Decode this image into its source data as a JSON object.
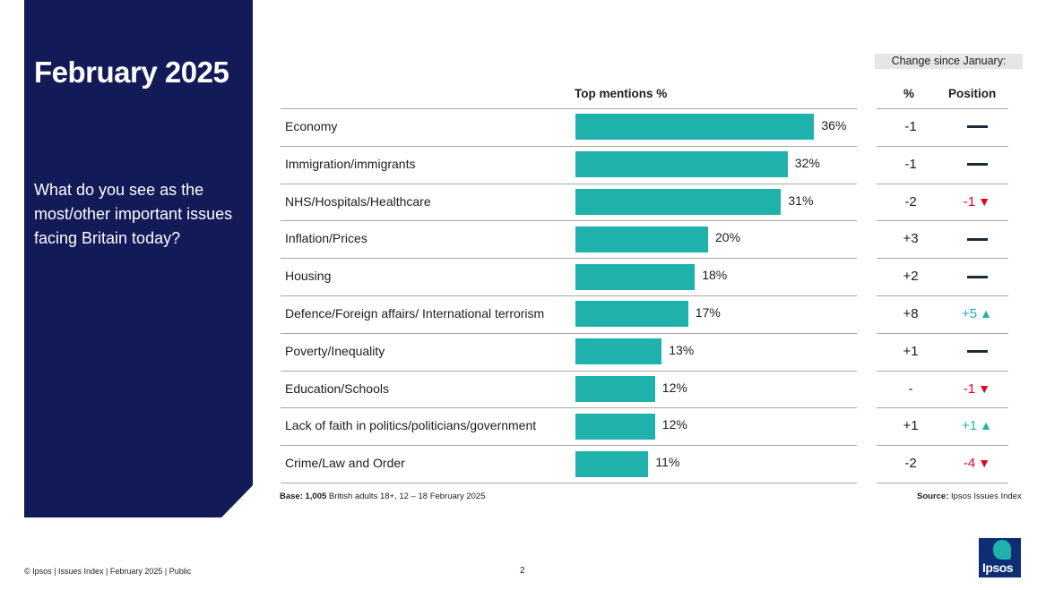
{
  "panel": {
    "title": "February 2025",
    "question": "What do you see as the most/other important issues facing Britain today?"
  },
  "headers": {
    "change": "Change since January:",
    "top_mentions": "Top mentions %",
    "pct": "%",
    "position": "Position"
  },
  "chart_data": {
    "type": "bar",
    "orientation": "horizontal",
    "title": "What do you see as the most/other important issues facing Britain today?",
    "value_label": "Top mentions %",
    "categories": [
      "Economy",
      "Immigration/immigrants",
      "NHS/Hospitals/Healthcare",
      "Inflation/Prices",
      "Housing",
      "Defence/Foreign affairs/ International terrorism",
      "Poverty/Inequality",
      "Education/Schools",
      "Lack of faith in politics/politicians/government",
      "Crime/Law and Order"
    ],
    "values": [
      36,
      32,
      31,
      20,
      18,
      17,
      13,
      12,
      12,
      11
    ],
    "value_labels": [
      "36%",
      "32%",
      "31%",
      "20%",
      "18%",
      "17%",
      "13%",
      "12%",
      "12%",
      "11%"
    ],
    "change_pct": [
      "-1",
      "-1",
      "-2",
      "+3",
      "+2",
      "+8",
      "+1",
      "-",
      "+1",
      "-2"
    ],
    "position_change": [
      {
        "dir": "none",
        "text": ""
      },
      {
        "dir": "none",
        "text": ""
      },
      {
        "dir": "down",
        "text": "-1"
      },
      {
        "dir": "none",
        "text": ""
      },
      {
        "dir": "none",
        "text": ""
      },
      {
        "dir": "up",
        "text": "+5"
      },
      {
        "dir": "none",
        "text": ""
      },
      {
        "dir": "down",
        "text": "-1"
      },
      {
        "dir": "up",
        "text": "+1"
      },
      {
        "dir": "down",
        "text": "-4"
      }
    ],
    "colors": {
      "bar": "#1fb1ac",
      "up": "#1fb1ac",
      "down": "#e4002b"
    }
  },
  "notes": {
    "base_bold": "Base: 1,005",
    "base_text": " British adults 18+, 12 – 18 February 2025",
    "source_bold": "Source:",
    "source_text": " Ipsos Issues Index"
  },
  "footer": {
    "text": "© Ipsos | Issues Index | February 2025 | Public",
    "page": "2"
  },
  "logo": {
    "text": "Ipsos"
  }
}
